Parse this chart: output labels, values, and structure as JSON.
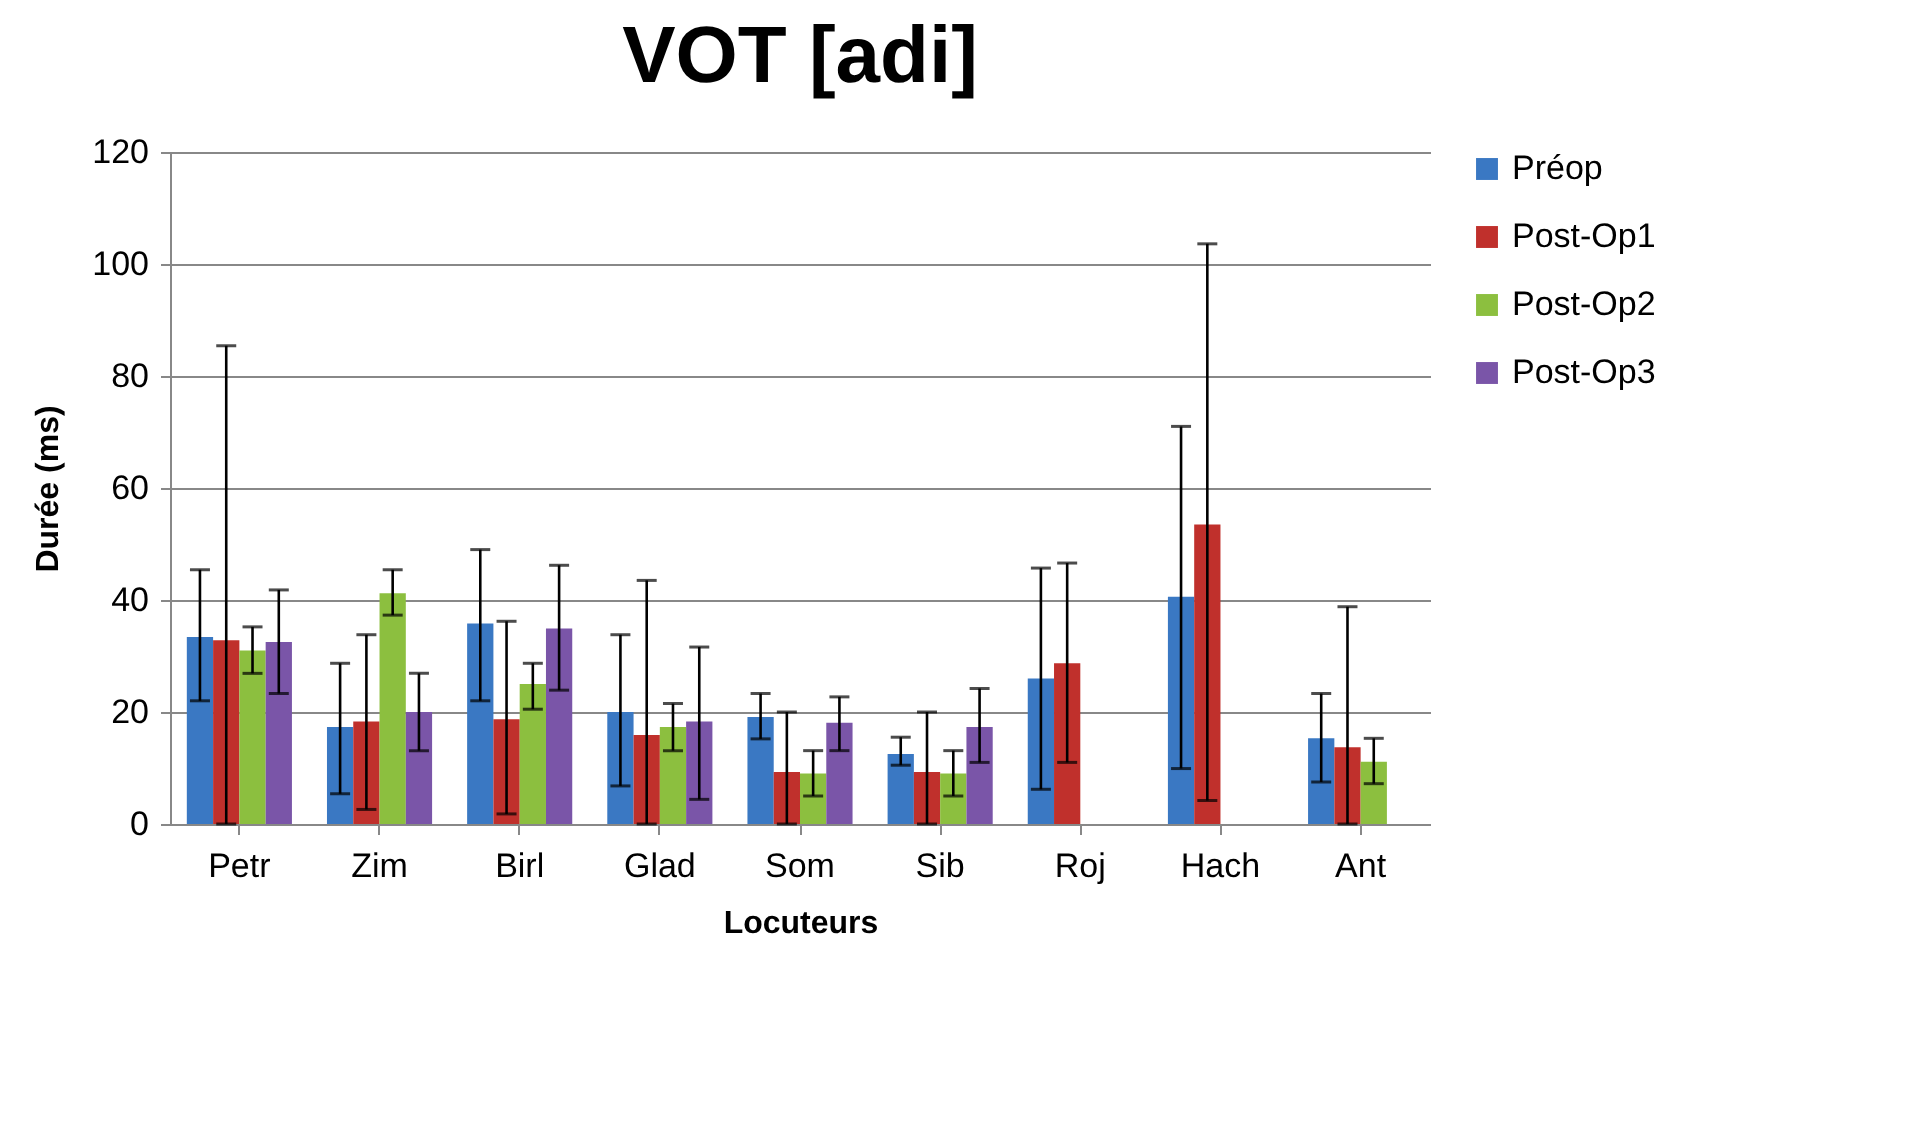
{
  "chart_data": {
    "type": "bar",
    "title": "VOT [adi]",
    "xlabel": "Locuteurs",
    "ylabel": "Durée (ms)",
    "categories": [
      "Petr",
      "Zim",
      "Birl",
      "Glad",
      "Som",
      "Sib",
      "Roj",
      "Hach",
      "Ant"
    ],
    "series": [
      {
        "name": "Préop",
        "color": "#3a78c3",
        "values": [
          33.4,
          17.3,
          35.8,
          20,
          19.1,
          12.5,
          26,
          40.6,
          15.3
        ],
        "errors": [
          [
            22,
            45.4
          ],
          [
            5.4,
            28.7
          ],
          [
            22,
            49
          ],
          [
            6.8,
            33.8
          ],
          [
            15.2,
            23.3
          ],
          [
            10.5,
            15.5
          ],
          [
            6.2,
            45.7
          ],
          [
            9.9,
            71
          ],
          [
            7.5,
            23.3
          ]
        ]
      },
      {
        "name": "Post-Op1",
        "color": "#c0302c",
        "values": [
          32.8,
          18.3,
          18.7,
          15.9,
          9.3,
          9.3,
          28.7,
          53.5,
          13.7
        ],
        "errors": [
          [
            0,
            85.4
          ],
          [
            2.6,
            33.8
          ],
          [
            1.8,
            36.2
          ],
          [
            0,
            43.5
          ],
          [
            0,
            20
          ],
          [
            0,
            20
          ],
          [
            11,
            46.6
          ],
          [
            4.2,
            103.6
          ],
          [
            0,
            38.8
          ]
        ]
      },
      {
        "name": "Post-Op2",
        "color": "#8cbf3f",
        "values": [
          31,
          41.2,
          25,
          17.3,
          9,
          9,
          null,
          null,
          11.1
        ],
        "errors": [
          [
            26.9,
            35.2
          ],
          [
            37.3,
            45.4
          ],
          [
            20.5,
            28.7
          ],
          [
            13.1,
            21.5
          ],
          [
            5,
            13.1
          ],
          [
            5,
            13.1
          ],
          null,
          null,
          [
            7.2,
            15.3
          ]
        ]
      },
      {
        "name": "Post-Op3",
        "color": "#7a55a8",
        "values": [
          32.5,
          20,
          34.9,
          18.3,
          18.1,
          17.3,
          null,
          null,
          null
        ],
        "errors": [
          [
            23.3,
            41.8
          ],
          [
            13.1,
            26.9
          ],
          [
            23.9,
            46.2
          ],
          [
            4.4,
            31.6
          ],
          [
            13.1,
            22.7
          ],
          [
            11,
            24.2
          ],
          null,
          null,
          null
        ]
      }
    ],
    "ylim": [
      0,
      120
    ],
    "yticks": [
      0,
      20,
      40,
      60,
      80,
      100,
      120
    ],
    "grid": "y",
    "legend": "right"
  }
}
